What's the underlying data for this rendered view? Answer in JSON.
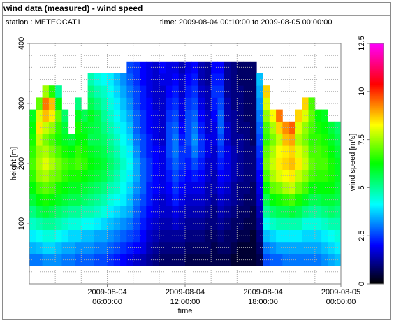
{
  "window": {
    "title": "wind data (measured) - wind speed",
    "station_text": "station : METEOCAT1",
    "time_text": "time: 2009-08-04 00:10:00 to 2009-08-05 00:00:00"
  },
  "chart_data": {
    "type": "heatmap",
    "title": "wind data (measured) - wind speed",
    "xlabel": "time",
    "ylabel": "height [m]",
    "colorbar_label": "wind speed [m/s]",
    "xlim": [
      0,
      24
    ],
    "ylim": [
      0,
      400
    ],
    "x_ticks": [
      {
        "value": 6,
        "line1": "2009-08-04",
        "line2": "06:00:00"
      },
      {
        "value": 12,
        "line1": "2009-08-04",
        "line2": "12:00:00"
      },
      {
        "value": 18,
        "line1": "2009-08-04",
        "line2": "18:00:00"
      },
      {
        "value": 24,
        "line1": "2009-08-05",
        "line2": "00:00:00"
      }
    ],
    "y_ticks": [
      100,
      200,
      300,
      400
    ],
    "colorbar_ticks": [
      0,
      2.5,
      5,
      7.5,
      10,
      12.5
    ],
    "colorbar_range": [
      0,
      12.5
    ],
    "grid": true,
    "colormap": [
      "#000000",
      "#0000ff",
      "#00ffff",
      "#00ff00",
      "#ffff00",
      "#ff0000",
      "#ff00ff"
    ],
    "height_bin_m": 20,
    "height_start_m": 30,
    "time_bin_h": 0.5,
    "columns": [
      {
        "t": 0.0,
        "top": 290,
        "speeds": [
          3.0,
          3.5,
          4.0,
          4.6,
          5.2,
          5.8,
          6.2,
          6.6,
          6.8,
          6.6,
          6.4,
          6.2,
          6.0
        ]
      },
      {
        "t": 0.5,
        "top": 310,
        "speeds": [
          3.0,
          3.6,
          4.2,
          4.8,
          5.6,
          6.2,
          6.8,
          7.4,
          7.6,
          7.4,
          7.8,
          8.4,
          8.0,
          7.0
        ]
      },
      {
        "t": 1.0,
        "top": 330,
        "speeds": [
          3.2,
          3.8,
          4.4,
          5.0,
          5.8,
          6.4,
          7.0,
          7.6,
          8.0,
          7.6,
          7.2,
          7.8,
          8.8,
          9.4,
          7.5
        ]
      },
      {
        "t": 1.5,
        "top": 330,
        "speeds": [
          3.2,
          3.8,
          4.4,
          5.0,
          5.6,
          6.2,
          6.8,
          7.2,
          7.6,
          7.2,
          6.8,
          7.4,
          8.4,
          8.8,
          6.5
        ]
      },
      {
        "t": 2.0,
        "top": 330,
        "speeds": [
          3.2,
          3.6,
          4.2,
          4.8,
          5.4,
          6.0,
          6.4,
          7.0,
          7.2,
          6.8,
          6.4,
          6.6,
          7.0,
          6.2,
          5.0
        ]
      },
      {
        "t": 2.5,
        "top": 290,
        "speeds": [
          3.0,
          3.4,
          4.0,
          4.6,
          5.2,
          5.8,
          6.2,
          6.6,
          6.8,
          6.4,
          6.0,
          5.8,
          5.4
        ]
      },
      {
        "t": 3.0,
        "top": 250,
        "speeds": [
          3.0,
          3.4,
          3.8,
          4.4,
          5.0,
          5.6,
          6.0,
          6.4,
          6.6,
          6.2,
          5.8
        ]
      },
      {
        "t": 3.5,
        "top": 310,
        "speeds": [
          2.8,
          3.2,
          3.8,
          4.4,
          5.0,
          5.6,
          6.0,
          6.4,
          6.8,
          6.6,
          6.2,
          6.4,
          6.0,
          5.2
        ]
      },
      {
        "t": 4.0,
        "top": 290,
        "speeds": [
          2.8,
          3.2,
          3.6,
          4.2,
          4.8,
          5.4,
          5.8,
          6.2,
          6.6,
          6.4,
          6.2,
          6.0,
          5.6
        ]
      },
      {
        "t": 4.5,
        "top": 350,
        "speeds": [
          2.8,
          3.2,
          3.6,
          4.2,
          4.8,
          5.2,
          5.6,
          6.0,
          6.2,
          6.0,
          5.6,
          5.8,
          6.0,
          5.6,
          5.2,
          4.8,
          4.6
        ]
      },
      {
        "t": 5.0,
        "top": 350,
        "speeds": [
          2.6,
          3.0,
          3.4,
          4.0,
          4.6,
          5.0,
          5.4,
          5.8,
          6.0,
          5.8,
          5.6,
          5.6,
          5.6,
          5.2,
          4.8,
          4.4,
          4.2
        ]
      },
      {
        "t": 5.5,
        "top": 350,
        "speeds": [
          2.6,
          3.0,
          3.4,
          3.8,
          4.4,
          4.8,
          5.2,
          5.6,
          5.8,
          5.6,
          5.4,
          5.2,
          5.0,
          4.8,
          4.6,
          4.2,
          4.0
        ]
      },
      {
        "t": 6.0,
        "top": 350,
        "speeds": [
          2.4,
          2.8,
          3.2,
          3.6,
          4.0,
          4.4,
          4.8,
          5.2,
          5.4,
          5.2,
          5.0,
          4.8,
          4.6,
          4.4,
          4.2,
          4.0,
          3.8
        ]
      },
      {
        "t": 6.5,
        "top": 350,
        "speeds": [
          2.2,
          2.6,
          3.0,
          3.4,
          3.8,
          4.2,
          4.6,
          4.8,
          5.0,
          4.8,
          4.6,
          4.4,
          4.2,
          4.0,
          3.8,
          3.6,
          3.4
        ]
      },
      {
        "t": 7.0,
        "top": 350,
        "speeds": [
          2.0,
          2.4,
          2.8,
          3.2,
          3.6,
          4.0,
          4.2,
          4.4,
          4.6,
          4.4,
          4.2,
          4.0,
          3.8,
          3.6,
          3.4,
          3.2,
          3.0
        ]
      },
      {
        "t": 7.5,
        "top": 370,
        "speeds": [
          1.8,
          2.2,
          2.6,
          3.0,
          3.4,
          3.6,
          3.8,
          4.0,
          4.2,
          4.0,
          3.8,
          3.6,
          3.4,
          3.2,
          3.0,
          2.8,
          2.6,
          2.4
        ]
      },
      {
        "t": 8.0,
        "top": 370,
        "speeds": [
          1.6,
          2.0,
          2.4,
          2.6,
          2.8,
          3.0,
          3.2,
          3.4,
          3.4,
          3.2,
          3.0,
          2.8,
          2.8,
          2.6,
          2.6,
          2.4,
          2.4,
          2.2
        ]
      },
      {
        "t": 8.5,
        "top": 370,
        "speeds": [
          1.4,
          1.8,
          2.0,
          2.2,
          2.4,
          2.6,
          2.8,
          2.8,
          2.8,
          2.6,
          2.6,
          2.4,
          2.4,
          2.2,
          2.2,
          2.0,
          2.0,
          2.0
        ]
      },
      {
        "t": 9.0,
        "top": 370,
        "speeds": [
          1.2,
          1.4,
          1.6,
          1.8,
          2.0,
          2.2,
          2.2,
          2.4,
          2.4,
          2.2,
          2.2,
          2.0,
          2.0,
          2.0,
          1.8,
          1.8,
          1.8,
          1.8
        ]
      },
      {
        "t": 9.5,
        "top": 370,
        "speeds": [
          1.0,
          1.2,
          1.4,
          1.6,
          1.8,
          1.8,
          2.0,
          2.0,
          2.0,
          2.0,
          1.8,
          1.8,
          1.8,
          1.6,
          1.6,
          1.6,
          1.6,
          1.8
        ]
      },
      {
        "t": 10.0,
        "top": 370,
        "speeds": [
          0.8,
          1.0,
          1.2,
          1.4,
          1.6,
          1.6,
          1.8,
          1.8,
          1.8,
          1.8,
          1.6,
          1.6,
          1.6,
          1.6,
          1.6,
          1.8,
          2.0,
          2.2
        ]
      },
      {
        "t": 10.5,
        "top": 370,
        "speeds": [
          0.8,
          1.0,
          1.2,
          1.4,
          1.6,
          1.8,
          2.0,
          2.2,
          2.4,
          2.6,
          2.6,
          2.6,
          2.4,
          2.2,
          2.0,
          1.8,
          1.8,
          2.0
        ]
      },
      {
        "t": 11.0,
        "top": 370,
        "speeds": [
          0.8,
          1.0,
          1.2,
          1.6,
          1.8,
          2.2,
          2.4,
          2.6,
          2.8,
          3.0,
          3.0,
          2.8,
          2.6,
          2.4,
          2.2,
          2.0,
          1.8,
          1.6
        ]
      },
      {
        "t": 11.5,
        "top": 370,
        "speeds": [
          0.8,
          1.0,
          1.2,
          1.4,
          1.6,
          1.8,
          2.0,
          2.2,
          2.4,
          2.4,
          2.2,
          2.0,
          1.8,
          1.8,
          1.6,
          1.6,
          1.4,
          1.4
        ]
      },
      {
        "t": 12.0,
        "top": 370,
        "speeds": [
          0.6,
          0.8,
          1.0,
          1.2,
          1.4,
          1.6,
          1.8,
          2.0,
          2.2,
          2.4,
          2.6,
          2.6,
          2.6,
          2.4,
          2.2,
          2.0,
          1.8,
          1.6
        ]
      },
      {
        "t": 12.5,
        "top": 370,
        "speeds": [
          0.6,
          0.8,
          1.0,
          1.2,
          1.4,
          1.6,
          1.8,
          2.2,
          2.6,
          3.0,
          3.2,
          3.0,
          2.8,
          2.6,
          2.4,
          2.2,
          2.0,
          1.8
        ]
      },
      {
        "t": 13.0,
        "top": 370,
        "speeds": [
          0.6,
          0.8,
          1.0,
          1.2,
          1.4,
          1.6,
          1.8,
          2.0,
          2.2,
          2.4,
          2.4,
          2.2,
          2.0,
          1.8,
          1.6,
          1.4,
          1.4,
          1.2
        ]
      },
      {
        "t": 13.5,
        "top": 370,
        "speeds": [
          0.6,
          0.8,
          0.8,
          1.0,
          1.2,
          1.4,
          1.4,
          1.6,
          1.6,
          1.8,
          1.8,
          1.6,
          1.6,
          1.4,
          1.4,
          1.2,
          1.2,
          1.2
        ]
      },
      {
        "t": 14.0,
        "top": 370,
        "speeds": [
          0.6,
          0.6,
          0.8,
          1.0,
          1.0,
          1.2,
          1.4,
          1.4,
          1.6,
          1.6,
          1.8,
          1.8,
          2.0,
          2.2,
          2.4,
          2.2,
          2.0,
          1.8
        ]
      },
      {
        "t": 14.5,
        "top": 370,
        "speeds": [
          0.6,
          0.8,
          1.0,
          1.2,
          1.4,
          1.6,
          1.8,
          2.0,
          2.2,
          2.4,
          2.6,
          2.8,
          2.8,
          2.6,
          2.4,
          2.2,
          2.0,
          1.8
        ]
      },
      {
        "t": 15.0,
        "top": 370,
        "speeds": [
          0.6,
          0.8,
          0.8,
          1.0,
          1.2,
          1.4,
          1.6,
          1.8,
          1.8,
          1.8,
          1.6,
          1.6,
          1.4,
          1.4,
          1.2,
          1.2,
          1.2,
          1.0
        ]
      },
      {
        "t": 15.5,
        "top": 370,
        "speeds": [
          0.4,
          0.6,
          0.8,
          0.8,
          1.0,
          1.2,
          1.2,
          1.4,
          1.4,
          1.4,
          1.2,
          1.2,
          1.2,
          1.0,
          1.0,
          1.0,
          1.0,
          1.0
        ]
      },
      {
        "t": 16.0,
        "top": 370,
        "speeds": [
          0.4,
          0.4,
          0.6,
          0.8,
          0.8,
          1.0,
          1.0,
          1.2,
          1.2,
          1.2,
          1.2,
          1.0,
          1.0,
          1.0,
          1.0,
          0.8,
          0.8,
          0.8
        ]
      },
      {
        "t": 16.5,
        "top": 370,
        "speeds": [
          0.4,
          0.4,
          0.6,
          0.6,
          0.8,
          0.8,
          1.0,
          1.0,
          1.0,
          1.0,
          1.0,
          1.0,
          0.8,
          0.8,
          0.8,
          0.8,
          0.8,
          0.8
        ]
      },
      {
        "t": 17.0,
        "top": 370,
        "speeds": [
          0.4,
          0.4,
          0.4,
          0.6,
          0.6,
          0.8,
          0.8,
          1.0,
          1.0,
          1.0,
          0.8,
          0.8,
          0.8,
          0.8,
          0.8,
          0.8,
          0.8,
          1.0
        ]
      },
      {
        "t": 17.5,
        "top": 350,
        "speeds": [
          0.6,
          0.8,
          1.0,
          1.2,
          1.4,
          1.6,
          1.8,
          2.0,
          2.2,
          2.4,
          2.6,
          2.8,
          3.0,
          3.2,
          3.4,
          3.6,
          3.8
        ]
      },
      {
        "t": 18.0,
        "top": 330,
        "speeds": [
          2.6,
          3.0,
          3.6,
          4.2,
          5.0,
          5.6,
          6.2,
          6.8,
          7.2,
          7.0,
          6.6,
          6.8,
          7.4,
          8.0,
          8.6
        ]
      },
      {
        "t": 18.5,
        "top": 290,
        "speeds": [
          2.8,
          3.2,
          3.8,
          4.6,
          5.4,
          6.2,
          7.0,
          7.6,
          7.8,
          7.6,
          7.2,
          7.6,
          8.2
        ]
      },
      {
        "t": 19.0,
        "top": 290,
        "speeds": [
          2.8,
          3.4,
          4.0,
          4.8,
          5.6,
          6.4,
          7.2,
          8.0,
          8.4,
          8.2,
          7.8,
          8.6,
          9.4
        ]
      },
      {
        "t": 19.5,
        "top": 270,
        "speeds": [
          3.0,
          3.4,
          4.0,
          4.8,
          5.6,
          6.6,
          7.6,
          8.2,
          8.6,
          8.4,
          8.8,
          9.2
        ]
      },
      {
        "t": 20.0,
        "top": 270,
        "speeds": [
          3.0,
          3.4,
          4.0,
          4.8,
          5.8,
          6.8,
          7.8,
          8.4,
          8.8,
          8.6,
          9.0,
          9.6
        ]
      },
      {
        "t": 20.5,
        "top": 290,
        "speeds": [
          3.0,
          3.4,
          4.0,
          4.8,
          5.6,
          6.4,
          7.2,
          7.8,
          8.4,
          8.0,
          7.6,
          8.0,
          8.6
        ]
      },
      {
        "t": 21.0,
        "top": 310,
        "speeds": [
          3.0,
          3.4,
          3.8,
          4.4,
          5.2,
          6.0,
          6.8,
          7.4,
          7.8,
          7.6,
          7.2,
          7.4,
          8.0,
          8.6
        ]
      },
      {
        "t": 21.5,
        "top": 310,
        "speeds": [
          3.0,
          3.4,
          3.8,
          4.4,
          5.0,
          5.6,
          6.2,
          6.8,
          7.0,
          6.8,
          6.6,
          6.8,
          7.0,
          6.8
        ]
      },
      {
        "t": 22.0,
        "top": 290,
        "speeds": [
          3.0,
          3.4,
          3.8,
          4.4,
          5.0,
          5.6,
          6.2,
          6.6,
          6.8,
          6.8,
          6.6,
          6.4,
          6.2
        ]
      },
      {
        "t": 22.5,
        "top": 290,
        "speeds": [
          3.2,
          3.6,
          4.0,
          4.6,
          5.2,
          5.8,
          6.2,
          6.6,
          6.8,
          6.6,
          6.4,
          6.2,
          6.0
        ]
      },
      {
        "t": 23.0,
        "top": 270,
        "speeds": [
          3.4,
          3.8,
          4.2,
          4.8,
          5.4,
          5.8,
          6.2,
          6.4,
          6.4,
          6.2,
          6.0,
          5.8
        ]
      },
      {
        "t": 23.5,
        "top": 270,
        "speeds": [
          3.6,
          4.0,
          4.4,
          4.8,
          5.2,
          5.6,
          5.8,
          6.0,
          6.0,
          5.8,
          5.6,
          5.4
        ]
      }
    ]
  }
}
